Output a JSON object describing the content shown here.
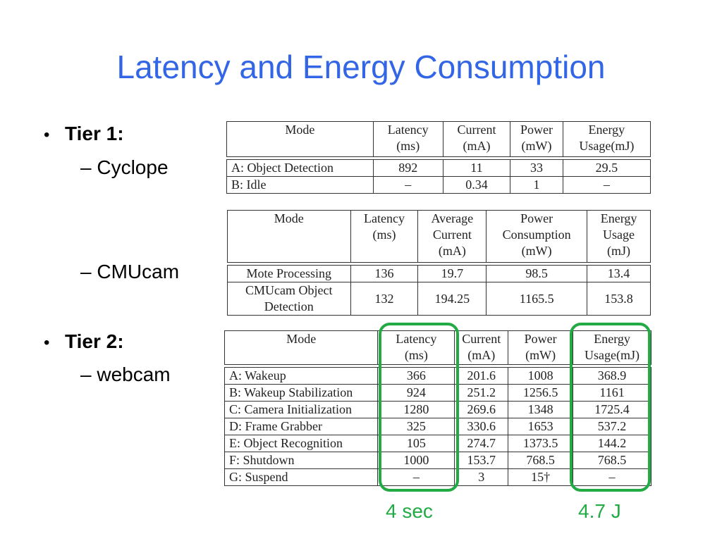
{
  "slide": {
    "title": "Latency and Energy Consumption",
    "accent_color": "#3366e6",
    "highlight_color": "#22aa44"
  },
  "bullets": [
    {
      "label": "Tier 1:",
      "subs": [
        "Cyclope",
        "CMUcam"
      ]
    },
    {
      "label": "Tier 2:",
      "subs": [
        "webcam"
      ]
    }
  ],
  "bullet_glyph": "•",
  "sub_prefix": "– ",
  "tables": {
    "cyclope": {
      "headers": [
        "Mode",
        "Latency\n(ms)",
        "Current\n(mA)",
        "Power\n(mW)",
        "Energy\nUsage(mJ)"
      ],
      "rows": [
        [
          "A: Object Detection",
          "892",
          "11",
          "33",
          "29.5"
        ],
        [
          "B: Idle",
          "–",
          "0.34",
          "1",
          "–"
        ]
      ]
    },
    "cmucam": {
      "headers": [
        "Mode",
        "Latency\n(ms)",
        "Average\nCurrent\n(mA)",
        "Power\nConsumption\n(mW)",
        "Energy\nUsage\n(mJ)"
      ],
      "rows": [
        [
          "Mote Processing",
          "136",
          "19.7",
          "98.5",
          "13.4"
        ],
        [
          "CMUcam Object\nDetection",
          "132",
          "194.25",
          "1165.5",
          "153.8"
        ]
      ]
    },
    "webcam": {
      "headers": [
        "Mode",
        "Latency\n(ms)",
        "Current\n(mA)",
        "Power\n(mW)",
        "Energy\nUsage(mJ)"
      ],
      "rows": [
        [
          "A: Wakeup",
          "366",
          "201.6",
          "1008",
          "368.9"
        ],
        [
          "B: Wakeup Stabilization",
          "924",
          "251.2",
          "1256.5",
          "1161"
        ],
        [
          "C: Camera Initialization",
          "1280",
          "269.6",
          "1348",
          "1725.4"
        ],
        [
          "D: Frame Grabber",
          "325",
          "330.6",
          "1653",
          "537.2"
        ],
        [
          "E: Object Recognition",
          "105",
          "274.7",
          "1373.5",
          "144.2"
        ],
        [
          "F: Shutdown",
          "1000",
          "153.7",
          "768.5",
          "768.5"
        ],
        [
          "G: Suspend",
          "–",
          "3",
          "15†",
          "–"
        ]
      ]
    }
  },
  "annotations": {
    "latency_total": "4 sec",
    "energy_total": "4.7 J"
  }
}
